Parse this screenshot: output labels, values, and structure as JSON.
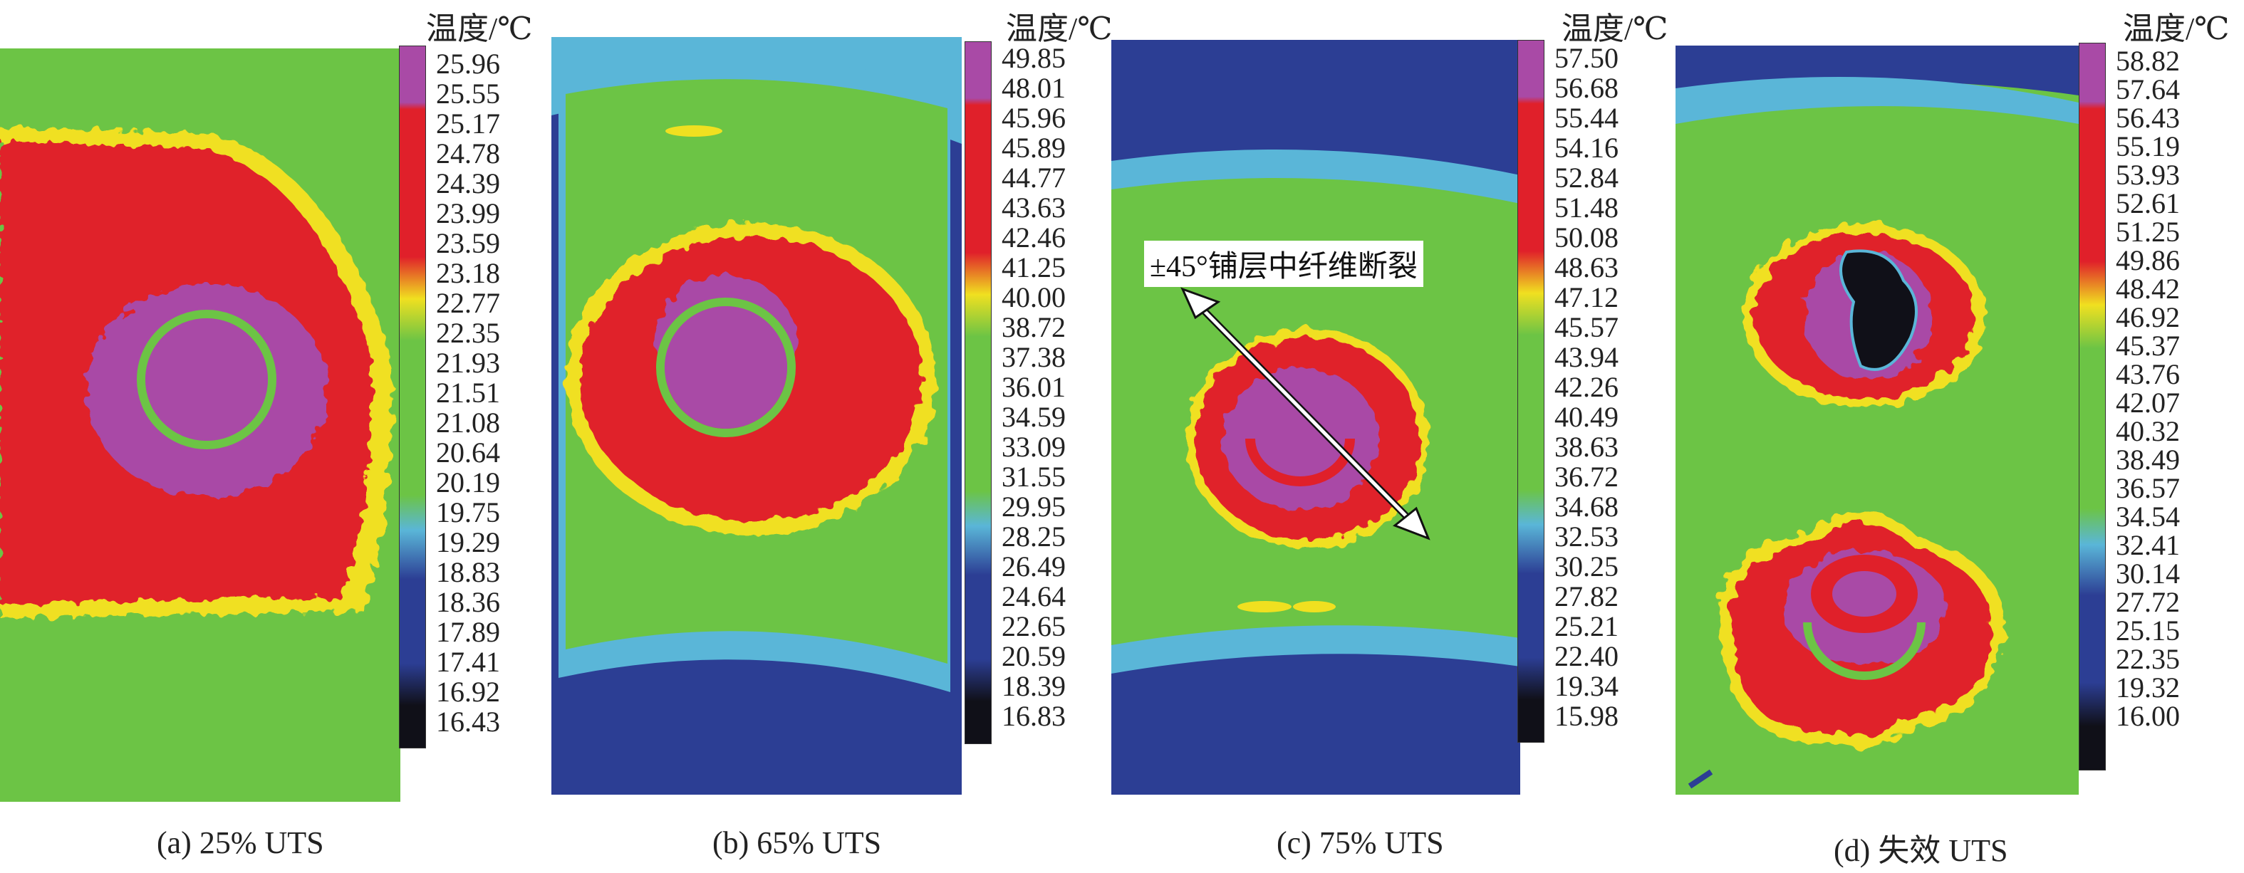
{
  "legend_title": "温度/℃",
  "panels": [
    {
      "caption": "(a) 25% UTS",
      "ticks": [
        "25.96",
        "25.55",
        "25.17",
        "24.78",
        "24.39",
        "23.99",
        "23.59",
        "23.18",
        "22.77",
        "22.35",
        "21.93",
        "21.51",
        "21.08",
        "20.64",
        "20.19",
        "19.75",
        "19.29",
        "18.83",
        "18.36",
        "17.89",
        "17.41",
        "16.92",
        "16.43"
      ]
    },
    {
      "caption": "(b) 65% UTS",
      "ticks": [
        "49.85",
        "48.01",
        "45.96",
        "45.89",
        "44.77",
        "43.63",
        "42.46",
        "41.25",
        "40.00",
        "38.72",
        "37.38",
        "36.01",
        "34.59",
        "33.09",
        "31.55",
        "29.95",
        "28.25",
        "26.49",
        "24.64",
        "22.65",
        "20.59",
        "18.39",
        "16.83"
      ]
    },
    {
      "caption": "(c) 75% UTS",
      "annotation": "±45°铺层中纤维断裂",
      "ticks": [
        "57.50",
        "56.68",
        "55.44",
        "54.16",
        "52.84",
        "51.48",
        "50.08",
        "48.63",
        "47.12",
        "45.57",
        "43.94",
        "42.26",
        "40.49",
        "38.63",
        "36.72",
        "34.68",
        "32.53",
        "30.25",
        "27.82",
        "25.21",
        "22.40",
        "19.34",
        "15.98"
      ]
    },
    {
      "caption": "(d) 失效 UTS",
      "ticks": [
        "58.82",
        "57.64",
        "56.43",
        "55.19",
        "53.93",
        "52.61",
        "51.25",
        "49.86",
        "48.42",
        "46.92",
        "45.37",
        "43.76",
        "42.07",
        "40.32",
        "38.49",
        "36.57",
        "34.54",
        "32.41",
        "30.14",
        "27.72",
        "25.15",
        "22.35",
        "19.32",
        "16.00"
      ]
    }
  ],
  "colors": {
    "magenta": "#a94aa6",
    "red": "#e0202a",
    "yellow": "#f0e020",
    "green": "#6cc445",
    "cyan": "#5ab6d8",
    "blue": "#2c3e94",
    "black": "#101018",
    "white_arrow": "#ffffff"
  }
}
